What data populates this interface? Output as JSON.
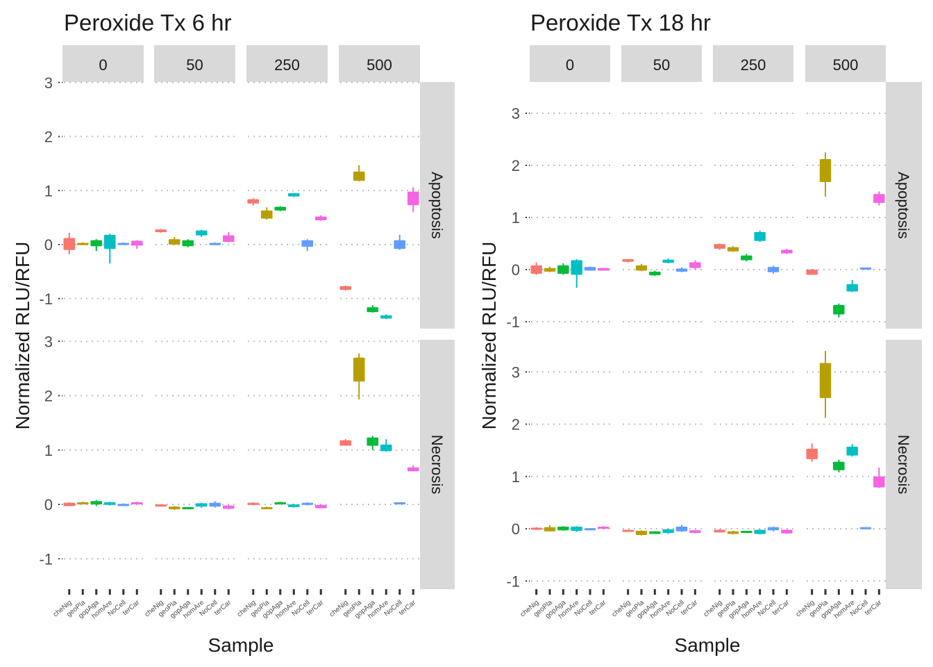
{
  "chart_data": [
    {
      "type": "box",
      "title": "Peroxide Tx 6 hr",
      "xlabel": "Sample",
      "ylabel": "Normalized RLU/RFU",
      "col_facets": [
        "0",
        "50",
        "250",
        "500"
      ],
      "row_facets": [
        "Apoptosis",
        "Necrosis"
      ],
      "categories": [
        "cheNig",
        "geoPla",
        "gopAga",
        "homAre",
        "NoCell",
        "terCar"
      ],
      "ylim": [
        -1.5,
        3.35
      ],
      "yticks": [
        -1,
        0,
        1,
        2,
        3
      ],
      "panels": [
        {
          "col": "0",
          "row": "Apoptosis",
          "boxes": [
            {
              "cat": "cheNig",
              "min": -0.18,
              "q1": -0.1,
              "q3": 0.12,
              "max": 0.22
            },
            {
              "cat": "geoPla",
              "min": -0.01,
              "q1": -0.01,
              "q3": 0.03,
              "max": 0.04
            },
            {
              "cat": "gopAga",
              "min": -0.12,
              "q1": -0.03,
              "q3": 0.08,
              "max": 0.1
            },
            {
              "cat": "homAre",
              "min": -0.35,
              "q1": -0.08,
              "q3": 0.18,
              "max": 0.2
            },
            {
              "cat": "NoCell",
              "min": 0.0,
              "q1": 0.0,
              "q3": 0.03,
              "max": 0.04
            },
            {
              "cat": "terCar",
              "min": -0.08,
              "q1": -0.02,
              "q3": 0.07,
              "max": 0.08
            }
          ]
        },
        {
          "col": "50",
          "row": "Apoptosis",
          "boxes": [
            {
              "cat": "cheNig",
              "min": 0.22,
              "q1": 0.23,
              "q3": 0.28,
              "max": 0.29
            },
            {
              "cat": "geoPla",
              "min": -0.01,
              "q1": 0.0,
              "q3": 0.1,
              "max": 0.14
            },
            {
              "cat": "gopAga",
              "min": -0.05,
              "q1": -0.03,
              "q3": 0.08,
              "max": 0.1
            },
            {
              "cat": "homAre",
              "min": 0.14,
              "q1": 0.17,
              "q3": 0.26,
              "max": 0.27
            },
            {
              "cat": "NoCell",
              "min": -0.01,
              "q1": -0.01,
              "q3": 0.03,
              "max": 0.04
            },
            {
              "cat": "terCar",
              "min": 0.05,
              "q1": 0.05,
              "q3": 0.17,
              "max": 0.23
            }
          ]
        },
        {
          "col": "250",
          "row": "Apoptosis",
          "boxes": [
            {
              "cat": "cheNig",
              "min": 0.72,
              "q1": 0.76,
              "q3": 0.84,
              "max": 0.86
            },
            {
              "cat": "geoPla",
              "min": 0.46,
              "q1": 0.48,
              "q3": 0.63,
              "max": 0.69
            },
            {
              "cat": "gopAga",
              "min": 0.62,
              "q1": 0.63,
              "q3": 0.7,
              "max": 0.71
            },
            {
              "cat": "homAre",
              "min": 0.88,
              "q1": 0.89,
              "q3": 0.95,
              "max": 0.95
            },
            {
              "cat": "NoCell",
              "min": -0.12,
              "q1": -0.04,
              "q3": 0.08,
              "max": 0.1
            },
            {
              "cat": "terCar",
              "min": 0.44,
              "q1": 0.45,
              "q3": 0.52,
              "max": 0.54
            }
          ]
        },
        {
          "col": "500",
          "row": "Apoptosis",
          "boxes": [
            {
              "cat": "cheNig",
              "min": -0.85,
              "q1": -0.84,
              "q3": -0.77,
              "max": -0.76
            },
            {
              "cat": "geoPla",
              "min": 1.17,
              "q1": 1.18,
              "q3": 1.35,
              "max": 1.47
            },
            {
              "cat": "gopAga",
              "min": -1.26,
              "q1": -1.25,
              "q3": -1.16,
              "max": -1.12
            },
            {
              "cat": "homAre",
              "min": -1.38,
              "q1": -1.37,
              "q3": -1.31,
              "max": -1.29
            },
            {
              "cat": "NoCell",
              "min": -0.1,
              "q1": -0.08,
              "q3": 0.08,
              "max": 0.18
            },
            {
              "cat": "terCar",
              "min": 0.6,
              "q1": 0.73,
              "q3": 0.98,
              "max": 1.06
            }
          ]
        },
        {
          "col": "0",
          "row": "Necrosis",
          "boxes": [
            {
              "cat": "cheNig",
              "min": -0.03,
              "q1": -0.03,
              "q3": 0.03,
              "max": 0.04
            },
            {
              "cat": "geoPla",
              "min": 0.0,
              "q1": 0.0,
              "q3": 0.04,
              "max": 0.05
            },
            {
              "cat": "gopAga",
              "min": -0.03,
              "q1": 0.0,
              "q3": 0.06,
              "max": 0.08
            },
            {
              "cat": "homAre",
              "min": -0.02,
              "q1": -0.01,
              "q3": 0.04,
              "max": 0.05
            },
            {
              "cat": "NoCell",
              "min": -0.03,
              "q1": -0.03,
              "q3": 0.01,
              "max": 0.02
            },
            {
              "cat": "terCar",
              "min": 0.0,
              "q1": 0.0,
              "q3": 0.04,
              "max": 0.05
            }
          ]
        },
        {
          "col": "50",
          "row": "Necrosis",
          "boxes": [
            {
              "cat": "cheNig",
              "min": -0.04,
              "q1": -0.04,
              "q3": 0.0,
              "max": 0.0
            },
            {
              "cat": "geoPla",
              "min": -0.1,
              "q1": -0.09,
              "q3": -0.04,
              "max": -0.03
            },
            {
              "cat": "gopAga",
              "min": -0.09,
              "q1": -0.09,
              "q3": -0.05,
              "max": -0.05
            },
            {
              "cat": "homAre",
              "min": -0.06,
              "q1": -0.04,
              "q3": 0.02,
              "max": 0.03
            },
            {
              "cat": "NoCell",
              "min": -0.06,
              "q1": -0.04,
              "q3": 0.03,
              "max": 0.06
            },
            {
              "cat": "terCar",
              "min": -0.09,
              "q1": -0.08,
              "q3": -0.02,
              "max": -0.01
            }
          ]
        },
        {
          "col": "250",
          "row": "Necrosis",
          "boxes": [
            {
              "cat": "cheNig",
              "min": -0.01,
              "q1": -0.01,
              "q3": 0.03,
              "max": 0.04
            },
            {
              "cat": "geoPla",
              "min": -0.09,
              "q1": -0.08,
              "q3": -0.05,
              "max": -0.04
            },
            {
              "cat": "gopAga",
              "min": 0.0,
              "q1": 0.0,
              "q3": 0.04,
              "max": 0.05
            },
            {
              "cat": "homAre",
              "min": -0.06,
              "q1": -0.05,
              "q3": 0.0,
              "max": 0.01
            },
            {
              "cat": "NoCell",
              "min": -0.02,
              "q1": -0.01,
              "q3": 0.03,
              "max": 0.04
            },
            {
              "cat": "terCar",
              "min": -0.07,
              "q1": -0.07,
              "q3": -0.01,
              "max": 0.0
            }
          ]
        },
        {
          "col": "500",
          "row": "Necrosis",
          "boxes": [
            {
              "cat": "cheNig",
              "min": 1.08,
              "q1": 1.08,
              "q3": 1.18,
              "max": 1.2
            },
            {
              "cat": "geoPla",
              "min": 1.93,
              "q1": 2.26,
              "q3": 2.7,
              "max": 2.78
            },
            {
              "cat": "gopAga",
              "min": 1.0,
              "q1": 1.08,
              "q3": 1.23,
              "max": 1.26
            },
            {
              "cat": "homAre",
              "min": 0.97,
              "q1": 0.98,
              "q3": 1.1,
              "max": 1.2
            },
            {
              "cat": "NoCell",
              "min": 0.0,
              "q1": 0.01,
              "q3": 0.04,
              "max": 0.04
            },
            {
              "cat": "terCar",
              "min": 0.61,
              "q1": 0.61,
              "q3": 0.68,
              "max": 0.72
            }
          ]
        }
      ]
    },
    {
      "type": "box",
      "title": "Peroxide Tx 18 hr",
      "xlabel": "Sample",
      "ylabel": "Normalized RLU/RFU",
      "col_facets": [
        "0",
        "50",
        "250",
        "500"
      ],
      "row_facets": [
        "Apoptosis",
        "Necrosis"
      ],
      "categories": [
        "cheNig",
        "geoPla",
        "gopAga",
        "homAre",
        "NoCell",
        "terCar"
      ],
      "ylim": [
        -1.15,
        3.55
      ],
      "yticks": [
        -1,
        0,
        1,
        2,
        3
      ],
      "panels": [
        {
          "col": "0",
          "row": "Apoptosis",
          "boxes": [
            {
              "cat": "cheNig",
              "min": -0.1,
              "q1": -0.08,
              "q3": 0.08,
              "max": 0.14
            },
            {
              "cat": "geoPla",
              "min": -0.05,
              "q1": -0.04,
              "q3": 0.03,
              "max": 0.06
            },
            {
              "cat": "gopAga",
              "min": -0.1,
              "q1": -0.08,
              "q3": 0.08,
              "max": 0.12
            },
            {
              "cat": "homAre",
              "min": -0.35,
              "q1": -0.1,
              "q3": 0.18,
              "max": 0.2
            },
            {
              "cat": "NoCell",
              "min": -0.02,
              "q1": -0.02,
              "q3": 0.05,
              "max": 0.06
            },
            {
              "cat": "terCar",
              "min": -0.02,
              "q1": -0.02,
              "q3": 0.03,
              "max": 0.03
            }
          ]
        },
        {
          "col": "50",
          "row": "Apoptosis",
          "boxes": [
            {
              "cat": "cheNig",
              "min": 0.14,
              "q1": 0.15,
              "q3": 0.2,
              "max": 0.2
            },
            {
              "cat": "geoPla",
              "min": -0.03,
              "q1": -0.02,
              "q3": 0.08,
              "max": 0.11
            },
            {
              "cat": "gopAga",
              "min": -0.12,
              "q1": -0.11,
              "q3": -0.04,
              "max": -0.02
            },
            {
              "cat": "homAre",
              "min": 0.12,
              "q1": 0.13,
              "q3": 0.19,
              "max": 0.21
            },
            {
              "cat": "NoCell",
              "min": -0.05,
              "q1": -0.04,
              "q3": 0.02,
              "max": 0.04
            },
            {
              "cat": "terCar",
              "min": 0.0,
              "q1": 0.03,
              "q3": 0.14,
              "max": 0.18
            }
          ]
        },
        {
          "col": "250",
          "row": "Apoptosis",
          "boxes": [
            {
              "cat": "cheNig",
              "min": 0.38,
              "q1": 0.4,
              "q3": 0.49,
              "max": 0.5
            },
            {
              "cat": "geoPla",
              "min": 0.34,
              "q1": 0.35,
              "q3": 0.43,
              "max": 0.45
            },
            {
              "cat": "gopAga",
              "min": 0.16,
              "q1": 0.18,
              "q3": 0.27,
              "max": 0.3
            },
            {
              "cat": "homAre",
              "min": 0.53,
              "q1": 0.55,
              "q3": 0.72,
              "max": 0.75
            },
            {
              "cat": "NoCell",
              "min": -0.08,
              "q1": -0.05,
              "q3": 0.05,
              "max": 0.07
            },
            {
              "cat": "terCar",
              "min": 0.3,
              "q1": 0.31,
              "q3": 0.38,
              "max": 0.4
            }
          ]
        },
        {
          "col": "500",
          "row": "Apoptosis",
          "boxes": [
            {
              "cat": "cheNig",
              "min": -0.1,
              "q1": -0.1,
              "q3": 0.0,
              "max": 0.01
            },
            {
              "cat": "geoPla",
              "min": 1.4,
              "q1": 1.68,
              "q3": 2.12,
              "max": 2.25
            },
            {
              "cat": "gopAga",
              "min": -0.92,
              "q1": -0.86,
              "q3": -0.68,
              "max": -0.65
            },
            {
              "cat": "homAre",
              "min": -0.43,
              "q1": -0.42,
              "q3": -0.28,
              "max": -0.2
            },
            {
              "cat": "NoCell",
              "min": 0.0,
              "q1": 0.0,
              "q3": 0.04,
              "max": 0.04
            },
            {
              "cat": "terCar",
              "min": 1.23,
              "q1": 1.28,
              "q3": 1.45,
              "max": 1.5
            }
          ]
        },
        {
          "col": "0",
          "row": "Necrosis",
          "boxes": [
            {
              "cat": "cheNig",
              "min": -0.02,
              "q1": -0.02,
              "q3": 0.02,
              "max": 0.03
            },
            {
              "cat": "geoPla",
              "min": -0.05,
              "q1": -0.05,
              "q3": 0.03,
              "max": 0.07
            },
            {
              "cat": "gopAga",
              "min": -0.04,
              "q1": -0.03,
              "q3": 0.04,
              "max": 0.05
            },
            {
              "cat": "homAre",
              "min": -0.06,
              "q1": -0.04,
              "q3": 0.04,
              "max": 0.05
            },
            {
              "cat": "NoCell",
              "min": -0.02,
              "q1": -0.02,
              "q3": 0.01,
              "max": 0.01
            },
            {
              "cat": "terCar",
              "min": -0.01,
              "q1": 0.0,
              "q3": 0.04,
              "max": 0.05
            }
          ]
        },
        {
          "col": "50",
          "row": "Necrosis",
          "boxes": [
            {
              "cat": "cheNig",
              "min": -0.06,
              "q1": -0.06,
              "q3": -0.02,
              "max": -0.02
            },
            {
              "cat": "geoPla",
              "min": -0.13,
              "q1": -0.12,
              "q3": -0.04,
              "max": -0.03
            },
            {
              "cat": "gopAga",
              "min": -0.1,
              "q1": -0.1,
              "q3": -0.05,
              "max": -0.05
            },
            {
              "cat": "homAre",
              "min": -0.1,
              "q1": -0.08,
              "q3": -0.01,
              "max": 0.0
            },
            {
              "cat": "NoCell",
              "min": -0.06,
              "q1": -0.05,
              "q3": 0.04,
              "max": 0.07
            },
            {
              "cat": "terCar",
              "min": -0.09,
              "q1": -0.08,
              "q3": -0.03,
              "max": -0.02
            }
          ]
        },
        {
          "col": "250",
          "row": "Necrosis",
          "boxes": [
            {
              "cat": "cheNig",
              "min": -0.07,
              "q1": -0.07,
              "q3": -0.02,
              "max": -0.01
            },
            {
              "cat": "geoPla",
              "min": -0.11,
              "q1": -0.1,
              "q3": -0.05,
              "max": -0.04
            },
            {
              "cat": "gopAga",
              "min": -0.08,
              "q1": -0.08,
              "q3": -0.04,
              "max": -0.04
            },
            {
              "cat": "homAre",
              "min": -0.11,
              "q1": -0.1,
              "q3": -0.02,
              "max": -0.01
            },
            {
              "cat": "NoCell",
              "min": -0.05,
              "q1": -0.03,
              "q3": 0.03,
              "max": 0.04
            },
            {
              "cat": "terCar",
              "min": -0.1,
              "q1": -0.09,
              "q3": -0.02,
              "max": -0.01
            }
          ]
        },
        {
          "col": "500",
          "row": "Necrosis",
          "boxes": [
            {
              "cat": "cheNig",
              "min": 1.28,
              "q1": 1.33,
              "q3": 1.53,
              "max": 1.63
            },
            {
              "cat": "geoPla",
              "min": 2.12,
              "q1": 2.5,
              "q3": 3.17,
              "max": 3.4
            },
            {
              "cat": "gopAga",
              "min": 1.08,
              "q1": 1.12,
              "q3": 1.28,
              "max": 1.32
            },
            {
              "cat": "homAre",
              "min": 1.38,
              "q1": 1.4,
              "q3": 1.57,
              "max": 1.62
            },
            {
              "cat": "NoCell",
              "min": -0.01,
              "q1": -0.01,
              "q3": 0.03,
              "max": 0.03
            },
            {
              "cat": "terCar",
              "min": 0.78,
              "q1": 0.79,
              "q3": 1.0,
              "max": 1.17
            }
          ]
        }
      ]
    }
  ],
  "colors": {
    "cheNig": "#F8766D",
    "geoPla": "#B79F00",
    "gopAga": "#00BA38",
    "homAre": "#00BFC4",
    "NoCell": "#619CFF",
    "terCar": "#F564E3",
    "strip": "#D9D9D9",
    "grid": "#BDBDBD"
  }
}
